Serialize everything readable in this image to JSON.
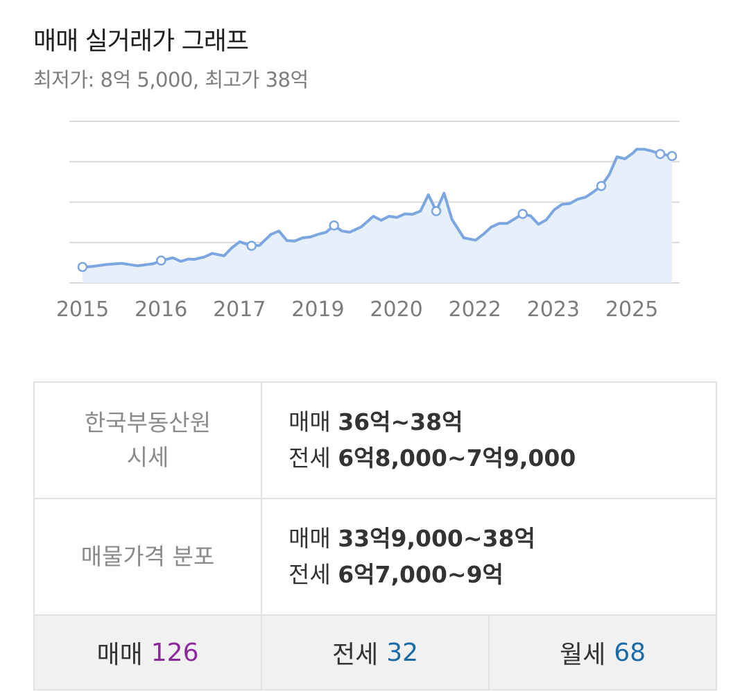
{
  "header": {
    "title": "매매 실거래가 그래프",
    "subtitle": "최저가: 8억 5,000, 최고가 38억"
  },
  "chart_data": {
    "type": "area",
    "title": "매매 실거래가 그래프",
    "xlabel": "",
    "ylabel": "",
    "x_tick_labels": [
      "2015",
      "2016",
      "2017",
      "2019",
      "2020",
      "2022",
      "2023",
      "2025"
    ],
    "y_unit": "억",
    "ylim": [
      4.5,
      45
    ],
    "grid": true,
    "color": "#7ba6df",
    "fill_color": "#e7f0fa",
    "x": [
      0,
      0.12,
      0.3,
      0.5,
      0.7,
      0.9,
      1.0,
      1.15,
      1.25,
      1.35,
      1.42,
      1.55,
      1.65,
      1.8,
      1.9,
      2.0,
      2.15,
      2.25,
      2.4,
      2.5,
      2.6,
      2.7,
      2.8,
      2.9,
      3.0,
      3.1,
      3.2,
      3.3,
      3.4,
      3.55,
      3.7,
      3.8,
      3.9,
      4.0,
      4.1,
      4.2,
      4.3,
      4.4,
      4.5,
      4.6,
      4.7,
      4.85,
      5.0,
      5.1,
      5.2,
      5.3,
      5.4,
      5.5,
      5.6,
      5.7,
      5.8,
      5.9,
      6.0,
      6.1,
      6.2,
      6.3,
      6.4,
      6.5,
      6.6,
      6.7,
      6.8,
      6.9,
      7.0,
      7.05,
      7.15,
      7.25,
      7.35,
      7.45,
      7.5
    ],
    "y": [
      8.5,
      8.6,
      9.1,
      9.4,
      8.8,
      9.3,
      10.1,
      10.8,
      9.9,
      10.5,
      10.4,
      11.0,
      11.9,
      11.3,
      13.3,
      14.8,
      13.8,
      13.9,
      16.7,
      17.5,
      15.1,
      15.0,
      15.8,
      16.0,
      16.7,
      17.2,
      18.9,
      17.5,
      17.2,
      18.6,
      21.2,
      20.2,
      21.2,
      20.9,
      21.8,
      21.7,
      22.5,
      26.6,
      22.5,
      27.0,
      20.4,
      15.8,
      15.2,
      16.7,
      18.5,
      19.4,
      19.4,
      20.6,
      21.8,
      21.3,
      19.2,
      20.3,
      22.8,
      24.2,
      24.4,
      25.5,
      26.0,
      27.3,
      28.8,
      31.6,
      36.1,
      35.6,
      37.0,
      38.0,
      38.0,
      37.5,
      36.8,
      36.5,
      36.3
    ],
    "marker_indices": [
      0,
      6,
      16,
      26,
      38,
      48,
      58,
      66,
      68
    ]
  },
  "info_table": {
    "rows": [
      {
        "label_line1": "한국부동산원",
        "label_line2": "시세",
        "sale_prefix": "매매 ",
        "sale_value": "36억~38억",
        "jeonse_prefix": "전세 ",
        "jeonse_value": "6억8,000~7억9,000"
      },
      {
        "label_line1": "매물가격 분포",
        "label_line2": "",
        "sale_prefix": "매매 ",
        "sale_value": "33억9,000~38억",
        "jeonse_prefix": "전세 ",
        "jeonse_value": "6억7,000~9억"
      }
    ]
  },
  "listing_counts": {
    "sale": {
      "label": "매매",
      "count": "126",
      "color": "#8a2a9a"
    },
    "jeonse": {
      "label": "전세",
      "count": "32",
      "color": "#1a6aa8"
    },
    "wolse": {
      "label": "월세",
      "count": "68",
      "color": "#1a6aa8"
    }
  }
}
